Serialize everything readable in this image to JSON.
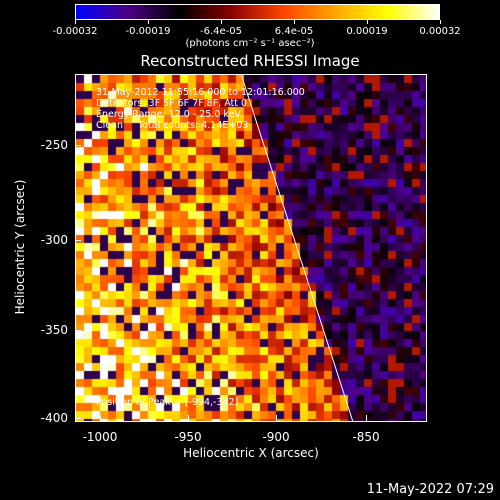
{
  "colorbar": {
    "ticks": [
      "-0.00032",
      "-0.00019",
      "-6.4e-05",
      "6.4e-05",
      "0.00019",
      "0.00032"
    ],
    "units": "(photons cm⁻² s⁻¹ asec⁻²)",
    "colors": [
      "#0000ff",
      "#4b0082",
      "#000000",
      "#8b0000",
      "#ff4500",
      "#ffa500",
      "#ffff00",
      "#ffffff"
    ]
  },
  "plot": {
    "title": "Reconstructed RHESSI Image",
    "info_lines": [
      "31-May-2012 11:55:16.000 to 12:01:16.000",
      "Detectors: 3F 5F 6F 7F 8F, Att 0",
      "Energy Range: 12.0 - 25.0 keV",
      "Clean     Total counts: 4.14E+03"
    ],
    "peak": "Position of Peak = [-994,-342]",
    "x_axis_title": "Heliocentric X (arcsec)",
    "y_axis_title": "Heliocentric Y (arcsec)",
    "x_ticks": [
      "-1000",
      "-950",
      "-900",
      "-850"
    ],
    "y_ticks": [
      "-250",
      "-300",
      "-350",
      "-400"
    ]
  },
  "chart_data": {
    "type": "heatmap",
    "title": "Reconstructed RHESSI Image",
    "xlabel": "Heliocentric X (arcsec)",
    "ylabel": "Heliocentric Y (arcsec)",
    "xlim": [
      -1013,
      -815
    ],
    "ylim": [
      -402,
      -206
    ],
    "colorbar_range": [
      -0.00032,
      0.00032
    ],
    "peak_position": [
      -994,
      -342
    ],
    "limb_line": {
      "from": [
        -920,
        -206
      ],
      "to": [
        -857,
        -402
      ]
    },
    "pattern": "bright orange/yellow emission concentrated at x < -920 (left of limb line), purple/blue low intensity to the right"
  },
  "footer": {
    "timestamp": "11-May-2022 07:29"
  }
}
